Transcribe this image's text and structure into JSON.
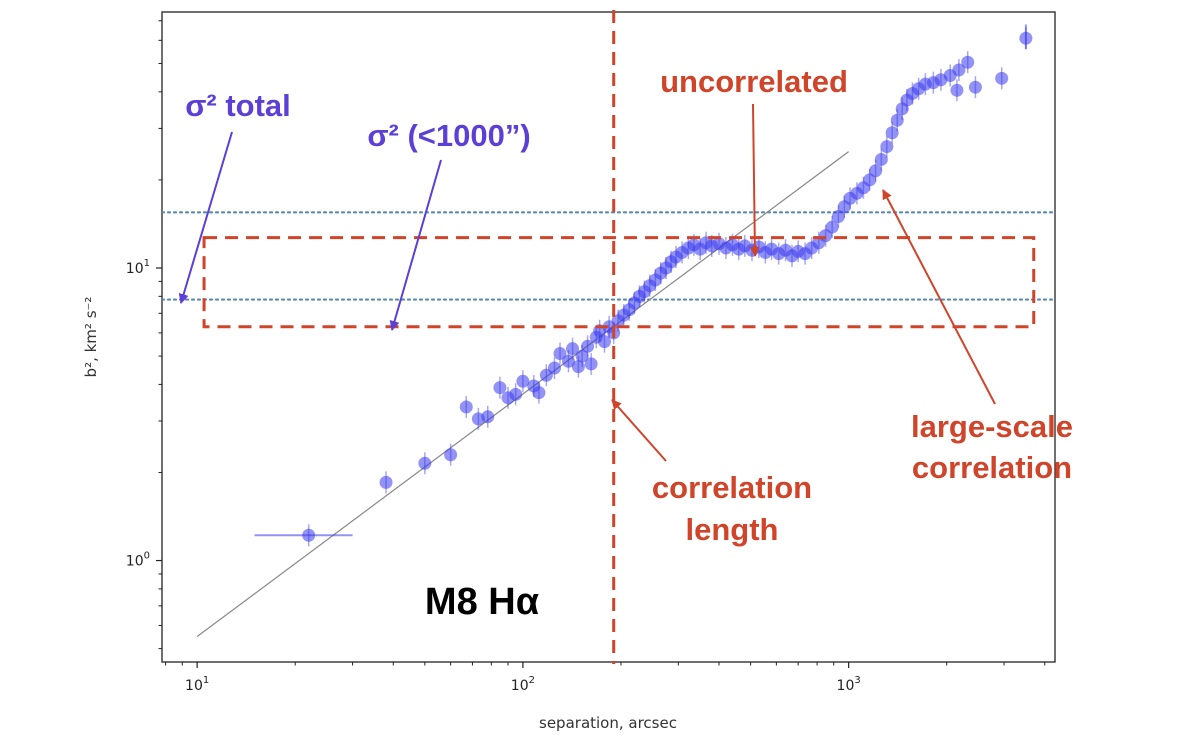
{
  "chart_data": {
    "type": "scatter",
    "xscale": "log",
    "yscale": "log",
    "xlim": [
      7.8,
      4300
    ],
    "ylim": [
      0.45,
      75
    ],
    "xlabel": "separation, arcsec",
    "ylabel": "b², km² s⁻²",
    "x_ticks": [
      {
        "value": 10,
        "base": "10",
        "exp": "1"
      },
      {
        "value": 100,
        "base": "10",
        "exp": "2"
      },
      {
        "value": 1000,
        "base": "10",
        "exp": "3"
      }
    ],
    "y_ticks": [
      {
        "value": 1,
        "base": "10",
        "exp": "0"
      },
      {
        "value": 10,
        "base": "10",
        "exp": "1"
      }
    ],
    "grid": false,
    "colors": {
      "points": "#3a3aee",
      "fit": "#888888",
      "dotted": "#5a8bb0",
      "red": "#d0442a",
      "blue": "#5b3fd6"
    },
    "fit_line": {
      "x": [
        10,
        1000
      ],
      "y": [
        0.55,
        25
      ]
    },
    "hlines": [
      {
        "y": 15.5
      },
      {
        "y": 7.8
      }
    ],
    "vline": {
      "x": 190
    },
    "box": {
      "x": [
        10.5,
        3700
      ],
      "y": [
        6.3,
        12.7
      ]
    },
    "points": [
      {
        "x": 22,
        "y": 1.22,
        "xerr": [
          15,
          30
        ]
      },
      {
        "x": 38,
        "y": 1.85
      },
      {
        "x": 50,
        "y": 2.15
      },
      {
        "x": 60,
        "y": 2.3
      },
      {
        "x": 67,
        "y": 3.35
      },
      {
        "x": 73,
        "y": 3.05
      },
      {
        "x": 78,
        "y": 3.1
      },
      {
        "x": 85,
        "y": 3.9
      },
      {
        "x": 90,
        "y": 3.6
      },
      {
        "x": 95,
        "y": 3.7
      },
      {
        "x": 100,
        "y": 4.1
      },
      {
        "x": 108,
        "y": 3.95
      },
      {
        "x": 112,
        "y": 3.75
      },
      {
        "x": 118,
        "y": 4.3
      },
      {
        "x": 125,
        "y": 4.55
      },
      {
        "x": 130,
        "y": 5.1
      },
      {
        "x": 138,
        "y": 4.8
      },
      {
        "x": 142,
        "y": 5.3
      },
      {
        "x": 148,
        "y": 4.6
      },
      {
        "x": 152,
        "y": 5.0
      },
      {
        "x": 158,
        "y": 5.4
      },
      {
        "x": 162,
        "y": 4.7
      },
      {
        "x": 168,
        "y": 5.8
      },
      {
        "x": 172,
        "y": 6.1
      },
      {
        "x": 178,
        "y": 5.6
      },
      {
        "x": 184,
        "y": 6.3
      },
      {
        "x": 190,
        "y": 6.0
      },
      {
        "x": 196,
        "y": 6.6
      },
      {
        "x": 204,
        "y": 6.9
      },
      {
        "x": 212,
        "y": 7.2
      },
      {
        "x": 220,
        "y": 7.6
      },
      {
        "x": 228,
        "y": 8.0
      },
      {
        "x": 236,
        "y": 8.3
      },
      {
        "x": 245,
        "y": 8.7
      },
      {
        "x": 255,
        "y": 9.1
      },
      {
        "x": 265,
        "y": 9.6
      },
      {
        "x": 275,
        "y": 10.0
      },
      {
        "x": 285,
        "y": 10.5
      },
      {
        "x": 295,
        "y": 10.9
      },
      {
        "x": 308,
        "y": 11.3
      },
      {
        "x": 322,
        "y": 11.7
      },
      {
        "x": 335,
        "y": 12.0
      },
      {
        "x": 350,
        "y": 11.6
      },
      {
        "x": 365,
        "y": 12.2
      },
      {
        "x": 380,
        "y": 11.9
      },
      {
        "x": 400,
        "y": 12.1
      },
      {
        "x": 420,
        "y": 11.7
      },
      {
        "x": 440,
        "y": 12.0
      },
      {
        "x": 460,
        "y": 11.6
      },
      {
        "x": 480,
        "y": 11.9
      },
      {
        "x": 505,
        "y": 11.5
      },
      {
        "x": 530,
        "y": 11.8
      },
      {
        "x": 555,
        "y": 11.3
      },
      {
        "x": 580,
        "y": 11.6
      },
      {
        "x": 610,
        "y": 11.2
      },
      {
        "x": 640,
        "y": 11.5
      },
      {
        "x": 670,
        "y": 11.0
      },
      {
        "x": 700,
        "y": 11.4
      },
      {
        "x": 735,
        "y": 11.2
      },
      {
        "x": 770,
        "y": 11.7
      },
      {
        "x": 810,
        "y": 12.2
      },
      {
        "x": 850,
        "y": 12.9
      },
      {
        "x": 890,
        "y": 13.8
      },
      {
        "x": 930,
        "y": 15.0
      },
      {
        "x": 970,
        "y": 16.2
      },
      {
        "x": 1010,
        "y": 17.3
      },
      {
        "x": 1060,
        "y": 18.0
      },
      {
        "x": 1110,
        "y": 18.8
      },
      {
        "x": 1160,
        "y": 20.0
      },
      {
        "x": 1210,
        "y": 21.5
      },
      {
        "x": 1260,
        "y": 23.5
      },
      {
        "x": 1310,
        "y": 26.0
      },
      {
        "x": 1360,
        "y": 29.0
      },
      {
        "x": 1410,
        "y": 32.0
      },
      {
        "x": 1460,
        "y": 35.0
      },
      {
        "x": 1510,
        "y": 37.5
      },
      {
        "x": 1570,
        "y": 39.5
      },
      {
        "x": 1640,
        "y": 41.0
      },
      {
        "x": 1720,
        "y": 42.5
      },
      {
        "x": 1820,
        "y": 43.0
      },
      {
        "x": 1920,
        "y": 44.0
      },
      {
        "x": 2050,
        "y": 45.5
      },
      {
        "x": 2180,
        "y": 47.5
      },
      {
        "x": 2320,
        "y": 50.5
      },
      {
        "x": 2150,
        "y": 40.5
      },
      {
        "x": 2450,
        "y": 41.5
      },
      {
        "x": 2950,
        "y": 44.5
      },
      {
        "x": 3500,
        "y": 61.0,
        "yerr": [
          56,
          68
        ]
      }
    ]
  },
  "annotations": {
    "sigma_total": "σ² total",
    "sigma_lt1000": "σ² (<1000”)",
    "uncorrelated": "uncorrelated",
    "correlation": "correlation",
    "length": "length",
    "large_scale": "large-scale",
    "correlation2": "correlation",
    "object": "M8 Hα"
  }
}
